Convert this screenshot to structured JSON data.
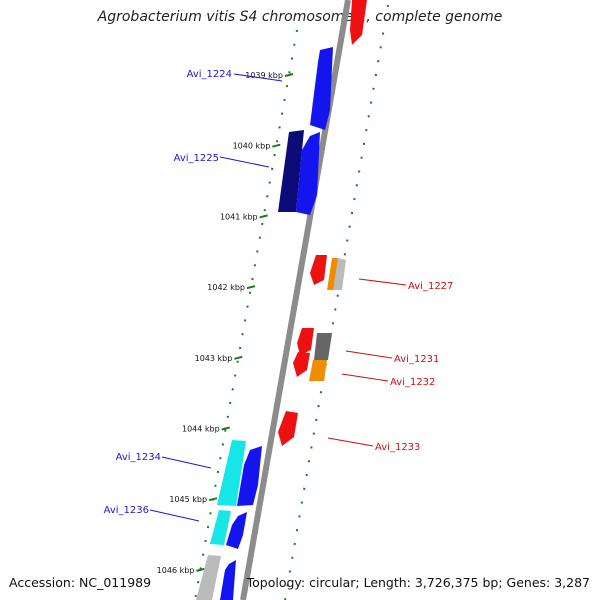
{
  "title": "Agrobacterium vitis S4 chromosome 1, complete genome",
  "footer": {
    "accession": "Accession: NC_011989",
    "summary": "Topology: circular; Length: 3,726,375 bp; Genes: 3,287"
  },
  "ticks": [
    "1039 kbp",
    "1040 kbp",
    "1041 kbp",
    "1042 kbp",
    "1043 kbp",
    "1044 kbp",
    "1045 kbp",
    "1046 kbp"
  ],
  "colors": {
    "backbone": "#8c8c8c",
    "tick": "#1e7a1e",
    "forward_label": "#1a1acc",
    "reverse_label": "#cc1111",
    "blue": "#1414ee",
    "navy": "#0c0c78",
    "cyan": "#16e6e6",
    "red": "#ee1111",
    "orange": "#f08c00",
    "gray": "#bbbbbb",
    "darkgray": "#666666"
  },
  "gene_labels": [
    {
      "text": "Avi_1224",
      "strand": "forward"
    },
    {
      "text": "Avi_1225",
      "strand": "forward"
    },
    {
      "text": "Avi_1234",
      "strand": "forward"
    },
    {
      "text": "Avi_1236",
      "strand": "forward"
    },
    {
      "text": "Avi_1227",
      "strand": "reverse"
    },
    {
      "text": "Avi_1231",
      "strand": "reverse"
    },
    {
      "text": "Avi_1232",
      "strand": "reverse"
    },
    {
      "text": "Avi_1233",
      "strand": "reverse"
    }
  ]
}
